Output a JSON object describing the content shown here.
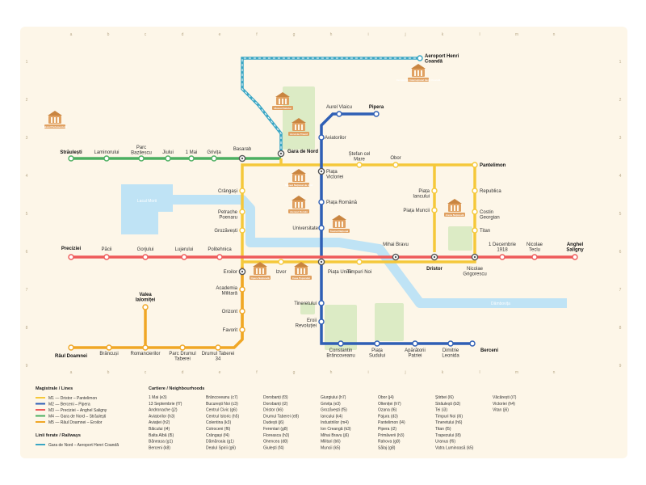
{
  "colors": {
    "background": "#fdf6e8",
    "page": "#ffffff",
    "water": "#bfe3f5",
    "park": "#dcebc5",
    "m1": "#f5c83a",
    "m2": "#2f5fb5",
    "m3": "#ee5a5a",
    "m4": "#4caf61",
    "m5": "#f0a726",
    "railway": "#3aa6c4",
    "landmark": "#e0a060"
  },
  "grid": {
    "columns": [
      "a",
      "b",
      "c",
      "d",
      "e",
      "f",
      "g",
      "h",
      "i",
      "j",
      "k",
      "l",
      "m",
      "n"
    ],
    "rows": [
      "1",
      "2",
      "3",
      "4",
      "5",
      "6",
      "7",
      "8",
      "9"
    ]
  },
  "areas": {
    "lake": "Lacul Morii",
    "river": "Dâmbovița"
  },
  "stations": {
    "stirbei": "Străulești",
    "laminorului": "Laminorului",
    "parc_bazilescu": "Parc Bazilescu",
    "jiului": "Jiului",
    "mai1": "1 Mai",
    "grivita": "Grivița",
    "basarab": "Basarab",
    "gara_de_nord": "Gara de Nord",
    "aurel_vlaicu": "Aurel Vlaicu",
    "pipera": "Pipera",
    "aviatorilor": "Aviatorilor",
    "stefan_cel_mare": "Ștefan cel Mare",
    "obor": "Obor",
    "pantelimon": "Pantelimon",
    "piata_victoriei": "Piața Victoriei",
    "piata_romana": "Piața Română",
    "universitate": "Universitate",
    "piata_iancului": "Piața Iancului",
    "piata_muncii": "Piața Muncii",
    "republica": "Republica",
    "costin_georgian": "Costin Georgian",
    "titan": "Titan",
    "crangasi": "Crângași",
    "petrache_poenaru": "Petrache Poenaru",
    "grozavesti": "Grozăvești",
    "preciziei": "Preciziei",
    "pacii": "Păcii",
    "gorjului": "Gorjului",
    "lujerului": "Lujerului",
    "politehnica": "Politehnica",
    "eroilor": "Eroilor",
    "izvor": "Izvor",
    "piata_unirii": "Piața Unirii",
    "timpuri_noi": "Timpuri Noi",
    "mihai_bravu": "Mihai Bravu",
    "dristor": "Dristor",
    "nicolae_grigorescu": "Nicolae Grigorescu",
    "decembrie": "1 Decembrie 1918",
    "nicolae_teclu": "Nicolae Teclu",
    "anghel_saligny": "Anghel Saligny",
    "academia_militara": "Academia Militară",
    "gorjului2": "Orizont",
    "favorit": "Favorit",
    "tineretului": "Tineretului",
    "eroii_revolutiei": "Eroii Revoluției",
    "valea_ialomitei": "Valea Ialomiței",
    "raul_doamnei": "Râul Doamnei",
    "brancusi": "Brâncuși",
    "romancierilor": "Romancierilor",
    "parc_drumul_taberei": "Parc Drumul Taberei",
    "drumul_taberei": "Drumul Taberei 34",
    "constantin_brancoveanu": "Constantin Brâncoveanu",
    "piata_sudului": "Piața Sudului",
    "aparatorii_patriei": "Apărătorii Patriei",
    "dimitrie_leonida": "Dimitrie Leonida",
    "berceni": "Berceni",
    "aeroport": "Aeroport Henri Coandă"
  },
  "landmarks": {
    "palatul_parlamentului": "Palatul Parlamentului",
    "aeroport_building": "Aeroportul Internațional Henri Coandă",
    "muzeul_satului": "Muzeul Satului",
    "arcul_de_triumf": "Arcul de Triumf",
    "muzeul_national": "Muzeul Național de Artă",
    "ateneul_roman": "Ateneul Român",
    "teatrul_national": "Teatrul Național",
    "arena_nationala": "Arena Națională",
    "opera_nationala": "Opera Națională",
    "casa_poporului": "Casa Poporului"
  },
  "legend": {
    "lines_title": "Magistrale / Lines",
    "lines": [
      {
        "code": "M1",
        "text": "M1 — Dristor – Pantelimon",
        "color": "#f5c83a"
      },
      {
        "code": "M2",
        "text": "M2 — Berceni – Pipera",
        "color": "#2f5fb5"
      },
      {
        "code": "M3",
        "text": "M3 — Preciziei – Anghel Saligny",
        "color": "#ee5a5a"
      },
      {
        "code": "M4",
        "text": "M4 — Gara de Nord – Străulești",
        "color": "#4caf61"
      },
      {
        "code": "M5",
        "text": "M5 — Râul Doamnei – Eroilor",
        "color": "#f0a726"
      }
    ],
    "rail_title": "Linii ferate / Railways",
    "rail": {
      "text": "Gara de Nord – Aeroport Henri Coandă",
      "color": "#3aa6c4"
    },
    "nbh_title": "Cartiere / Neighbourhoods",
    "neighbourhoods": [
      [
        "1 Mai (e3)",
        "13 Septembrie (f7)",
        "Andronache (j2)",
        "Aviatorilor (h3)",
        "Aviației (h2)",
        "Băicului (i4)",
        "Balta Albă (l5)",
        "Băneasa (g1)",
        "Berceni (k8)"
      ],
      [
        "Brâncoveanu (c7)",
        "București Noi (c3)",
        "Centrul Civic (g6)",
        "Centrul Istoric (h5)",
        "Colentina (k3)",
        "Cotroceni (f6)",
        "Crângași (f4)",
        "Dămăroaia (g1)",
        "Dealul Spirii (g6)"
      ],
      [
        "Dorobanți (f3)",
        "Dorobanți (i2)",
        "Dristor (k6)",
        "Drumul Taberei (e8)",
        "Dudești (j6)",
        "Ferentari (g8)",
        "Floreasca (h3)",
        "Ghencea (d8)",
        "Giulești (f4)"
      ],
      [
        "Giurgiului (h7)",
        "Grivița (e3)",
        "Grozăvești (f5)",
        "Iancului (k4)",
        "Industriilor (m4)",
        "Ion Creangă (k3)",
        "Mihai Bravu (j6)",
        "Militari (b6)",
        "Muncii (k5)"
      ],
      [
        "Obor (j4)",
        "Olteniței (h7)",
        "Ozana (l6)",
        "Pajura (d3)",
        "Pantelimon (l4)",
        "Pipera (i2)",
        "Primăverii (h3)",
        "Rahova (g8)",
        "Sălaj (g8)"
      ],
      [
        "Știrbei (l6)",
        "Străulești (b3)",
        "Tei (i3)",
        "Timpuri Noi (i6)",
        "Tineretului (h6)",
        "Titan (l5)",
        "Trapezului (l8)",
        "Uranus (f6)",
        "Vatra Luminoasă (k5)"
      ],
      [
        "Văcărești (i7)",
        "Victoriei (h4)",
        "Vitan (j6)"
      ]
    ]
  }
}
